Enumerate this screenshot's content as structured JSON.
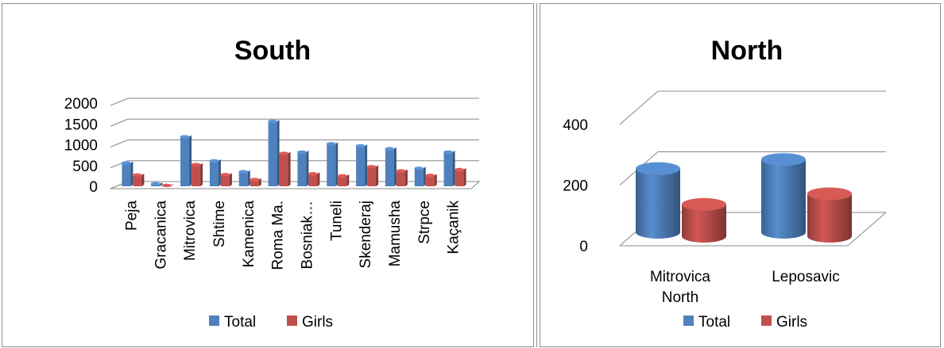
{
  "chart_data": [
    {
      "type": "bar",
      "title": "South",
      "categories": [
        "Peja",
        "Gracanica",
        "Mitrovica",
        "Shtime",
        "Kamenica",
        "Roma Ma.",
        "Bosniak…",
        "Tuneli",
        "Skenderaj",
        "Mamusha",
        "Strpce",
        "Kaçanik"
      ],
      "series": [
        {
          "name": "Total",
          "values": [
            560,
            60,
            1190,
            610,
            350,
            1560,
            820,
            1020,
            970,
            900,
            430,
            820
          ]
        },
        {
          "name": "Girls",
          "values": [
            270,
            20,
            520,
            280,
            160,
            790,
            300,
            250,
            470,
            370,
            260,
            400
          ]
        }
      ],
      "y_ticks": [
        "2000",
        "1500",
        "1000",
        "500",
        "0"
      ],
      "ylim": [
        0,
        2000
      ],
      "grid": true,
      "legend_position": "bottom",
      "colors": {
        "Total": "#4f81bd",
        "Girls": "#c0504d"
      }
    },
    {
      "type": "bar",
      "title": "North",
      "categories": [
        "Mitrovica North",
        "Leposavic"
      ],
      "series": [
        {
          "name": "Total",
          "values": [
            210,
            240
          ]
        },
        {
          "name": "Girls",
          "values": [
            105,
            140
          ]
        }
      ],
      "y_ticks": [
        "400",
        "200",
        "0"
      ],
      "ylim": [
        0,
        400
      ],
      "grid": true,
      "legend_position": "bottom",
      "colors": {
        "Total": "#4f81bd",
        "Girls": "#c0504d"
      }
    }
  ]
}
